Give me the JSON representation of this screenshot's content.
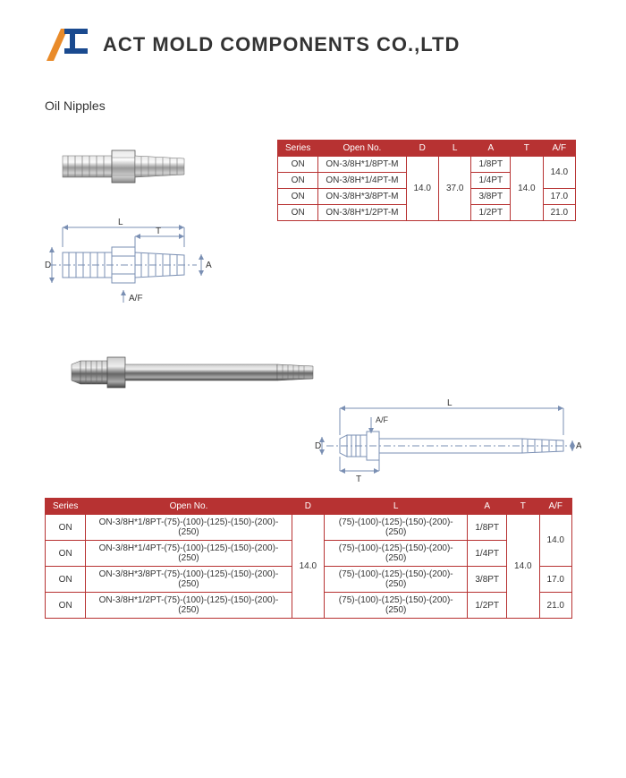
{
  "company": "ACT MOLD COMPONENTS CO.,LTD",
  "section_title": "Oil Nipples",
  "colors": {
    "header_bg": "#b73232",
    "border": "#b73232",
    "logo_orange": "#e98b2a",
    "logo_blue": "#1a4a8f",
    "dim_line": "#7a8fb3"
  },
  "table1": {
    "columns": [
      "Series",
      "Open No.",
      "D",
      "L",
      "A",
      "T",
      "A/F"
    ],
    "rows": [
      [
        "ON",
        "ON-3/8H*1/8PT-M",
        "14.0",
        "37.0",
        "1/8PT",
        "14.0",
        "14.0"
      ],
      [
        "ON",
        "ON-3/8H*1/4PT-M",
        "14.0",
        "37.0",
        "1/4PT",
        "14.0",
        "14.0"
      ],
      [
        "ON",
        "ON-3/8H*3/8PT-M",
        "14.0",
        "37.0",
        "3/8PT",
        "14.0",
        "17.0"
      ],
      [
        "ON",
        "ON-3/8H*1/2PT-M",
        "14.0",
        "37.0",
        "1/2PT",
        "14.0",
        "21.0"
      ]
    ],
    "dspan": 4,
    "lspan": 4,
    "tspan": 4,
    "afspan": 2
  },
  "table2": {
    "columns": [
      "Series",
      "Open No.",
      "D",
      "L",
      "A",
      "T",
      "A/F"
    ],
    "rows": [
      [
        "ON",
        "ON-3/8H*1/8PT-(75)-(100)-(125)-(150)-(200)-(250)",
        "14.0",
        "(75)-(100)-(125)-(150)-(200)-(250)",
        "1/8PT",
        "14.0",
        "14.0"
      ],
      [
        "ON",
        "ON-3/8H*1/4PT-(75)-(100)-(125)-(150)-(200)-(250)",
        "14.0",
        "(75)-(100)-(125)-(150)-(200)-(250)",
        "1/4PT",
        "14.0",
        "14.0"
      ],
      [
        "ON",
        "ON-3/8H*3/8PT-(75)-(100)-(125)-(150)-(200)-(250)",
        "14.0",
        "(75)-(100)-(125)-(150)-(200)-(250)",
        "3/8PT",
        "14.0",
        "17.0"
      ],
      [
        "ON",
        "ON-3/8H*1/2PT-(75)-(100)-(125)-(150)-(200)-(250)",
        "14.0",
        "(75)-(100)-(125)-(150)-(200)-(250)",
        "1/2PT",
        "14.0",
        "21.0"
      ]
    ]
  },
  "dim_labels": {
    "D": "D",
    "L": "L",
    "T": "T",
    "A": "A",
    "AF": "A/F"
  }
}
